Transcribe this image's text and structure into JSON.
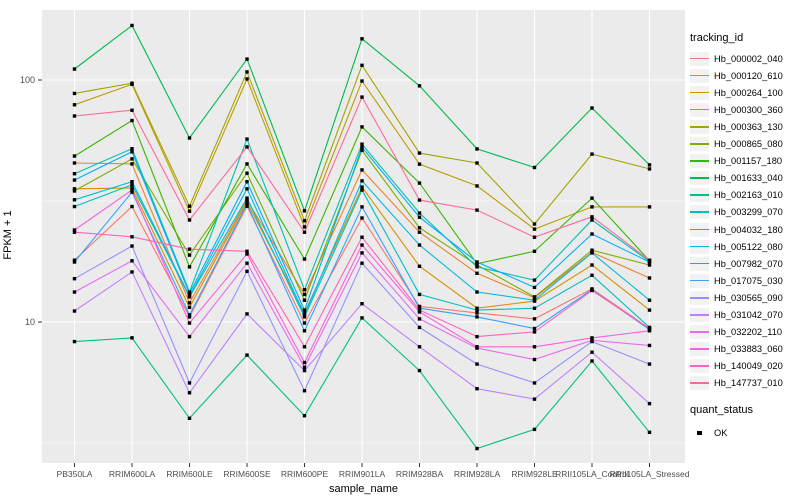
{
  "figure": {
    "y_axis": {
      "title": "FPKM + 1",
      "tick_labels": [
        "100",
        "10"
      ]
    },
    "x_axis": {
      "title": "sample_name"
    },
    "legend": {
      "tracking_title": "tracking_id",
      "quant_title": "quant_status",
      "quant_ok_label": "OK"
    },
    "colors": {
      "panel_bg": "#EBEBEB",
      "grid_major": "#FFFFFF",
      "tick_text": "#4D4D4D",
      "marker": "#000000",
      "tick_mark": "#333333"
    }
  },
  "chart_data": {
    "type": "line",
    "title": "",
    "xlabel": "sample_name",
    "ylabel": "FPKM + 1",
    "y_scale": "log10",
    "ylim": [
      2.6,
      195
    ],
    "y_ticks": [
      100,
      10
    ],
    "y_minor": [
      31.62,
      3.162
    ],
    "grid": "on",
    "legend_position": "right",
    "point_marker": "black-square",
    "quant_status": "OK",
    "categories": [
      "PB350LA",
      "RRIM600LA",
      "RRIM600LE",
      "RRIM600SE",
      "RRIM600PE",
      "RRIM901LA",
      "RRIM928BA",
      "RRIM928LA",
      "RRIM928LE",
      "RRII105LA_Control",
      "RRII105LA_Stressed"
    ],
    "series": [
      {
        "name": "Hb_000002_040",
        "color": "#F8766D",
        "values": [
          18,
          30,
          10.5,
          30.1,
          9.9,
          26.9,
          11.6,
          10.9,
          10.3,
          13.7,
          9.4
        ]
      },
      {
        "name": "Hb_000120_610",
        "color": "#EA8331",
        "values": [
          45.4,
          45,
          12,
          31.9,
          13,
          42.5,
          23.5,
          15.9,
          12.6,
          19.4,
          15.2
        ]
      },
      {
        "name": "Hb_000264_100",
        "color": "#D89000",
        "values": [
          35.5,
          35.8,
          11.5,
          31.3,
          10.9,
          36.1,
          17,
          11.4,
          12.2,
          17.2,
          11.2
        ]
      },
      {
        "name": "Hb_000300_360",
        "color": "#C09B00",
        "values": [
          79,
          96,
          28.7,
          101,
          24.7,
          99,
          44.9,
          36.5,
          24.2,
          29.9,
          29.9
        ]
      },
      {
        "name": "Hb_000363_130",
        "color": "#A3A500",
        "values": [
          88,
          97,
          30.1,
          108,
          26.2,
          115,
          49.9,
          45.4,
          25.4,
          49.4,
          42.9
        ]
      },
      {
        "name": "Hb_000865_080",
        "color": "#7CAE00",
        "values": [
          34.8,
          47.2,
          18.9,
          41.2,
          12.3,
          51.2,
          24.5,
          17.2,
          12.7,
          19.8,
          17.2
        ]
      },
      {
        "name": "Hb_001157_180",
        "color": "#39B600",
        "values": [
          48.5,
          68,
          16.9,
          45,
          18.2,
          64,
          37.5,
          17.4,
          19.6,
          32.5,
          17.9
        ]
      },
      {
        "name": "Hb_001633_040",
        "color": "#00BB4E",
        "values": [
          111,
          168,
          57.6,
          122,
          28.8,
          148,
          94.6,
          51.9,
          43.5,
          76.6,
          44.6
        ]
      },
      {
        "name": "Hb_002163_010",
        "color": "#00C087",
        "values": [
          8.3,
          8.6,
          4,
          7.3,
          4.1,
          10.4,
          6.3,
          3,
          3.6,
          6.9,
          3.5
        ]
      },
      {
        "name": "Hb_003299_070",
        "color": "#00C0B2",
        "values": [
          41,
          52,
          13.3,
          57,
          13.6,
          54.3,
          28.2,
          16.9,
          14.9,
          26.4,
          17.8
        ]
      },
      {
        "name": "Hb_004032_180",
        "color": "#00BFC4",
        "values": [
          30,
          36.9,
          12.7,
          32.5,
          10.5,
          35.1,
          13,
          11.2,
          11.4,
          15.6,
          9.5
        ]
      },
      {
        "name": "Hb_005122_080",
        "color": "#00BAE2",
        "values": [
          32,
          38,
          12.8,
          35.5,
          10.7,
          38.3,
          20.8,
          13.3,
          12.3,
          19.3,
          12.3
        ]
      },
      {
        "name": "Hb_007982_070",
        "color": "#00B0F6",
        "values": [
          38.6,
          50.5,
          13.1,
          38,
          11.2,
          52.7,
          27.1,
          17.7,
          13.9,
          23.1,
          17.7
        ]
      },
      {
        "name": "Hb_017075_030",
        "color": "#35A2FF",
        "values": [
          17.7,
          34.4,
          10.7,
          30.7,
          9.2,
          29.9,
          11.4,
          10.5,
          9.4,
          13.6,
          9.3
        ]
      },
      {
        "name": "Hb_030565_090",
        "color": "#9590FF",
        "values": [
          15.1,
          20.6,
          5.6,
          16.2,
          5.2,
          17.5,
          9.5,
          6.7,
          5.6,
          8.3,
          6.7
        ]
      },
      {
        "name": "Hb_031042_070",
        "color": "#BF80FF",
        "values": [
          11.1,
          16.1,
          5.1,
          10.8,
          6.3,
          11.9,
          7.9,
          5.3,
          4.8,
          7.5,
          4.6
        ]
      },
      {
        "name": "Hb_032202_110",
        "color": "#E76BF3",
        "values": [
          13.3,
          17.9,
          8.7,
          17.5,
          6.5,
          19.3,
          10.3,
          7.8,
          7,
          8.4,
          8
        ]
      },
      {
        "name": "Hb_033883_060",
        "color": "#FA62DB",
        "values": [
          24,
          35.1,
          9.9,
          19.1,
          6.8,
          20.8,
          11,
          7.9,
          7.9,
          8.6,
          9.2
        ]
      },
      {
        "name": "Hb_140049_020",
        "color": "#FF62BC",
        "values": [
          23.5,
          22.5,
          20,
          19.6,
          7.9,
          22.4,
          11.2,
          8.7,
          9.1,
          13.5,
          9.4
        ]
      },
      {
        "name": "Hb_147737_010",
        "color": "#FF6A98",
        "values": [
          71,
          75,
          26.4,
          52.9,
          23.5,
          85,
          31.9,
          29,
          22.4,
          27.2,
          18
        ]
      }
    ]
  }
}
